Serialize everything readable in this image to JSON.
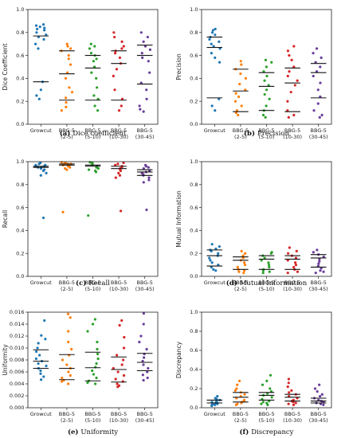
{
  "colors": {
    "Growcut": "#1f77b4",
    "BBG-5 (2-5)": "#ff7f0e",
    "BBG-5 (5-10)": "#2ca02c",
    "BBG-5 (10-30)": "#d62728",
    "BBG-5 (30-45)": "#6a3d9a"
  },
  "chart_data": [
    {
      "type": "scatter",
      "caption_letter": "(a)",
      "caption_text": "Dice coefficient",
      "ylabel": "Dice Coefficient",
      "ylim": [
        0,
        1.0
      ],
      "yticks": [
        0.0,
        0.2,
        0.4,
        0.6,
        0.8,
        1.0
      ],
      "categories": [
        "Growcut",
        "BBG-5\n(2-5)",
        "BBG-5\n(5-10)",
        "BBG-5\n(10-30)",
        "BBG-5\n(30-45)"
      ],
      "series": [
        {
          "values": [
            0.87,
            0.86,
            0.85,
            0.84,
            0.83,
            0.82,
            0.8,
            0.78,
            0.76,
            0.74,
            0.7,
            0.66,
            0.37,
            0.3,
            0.25,
            0.22
          ],
          "markers": [
            0.77,
            0.37
          ]
        },
        {
          "values": [
            0.7,
            0.68,
            0.66,
            0.64,
            0.6,
            0.57,
            0.52,
            0.45,
            0.4,
            0.32,
            0.28,
            0.23,
            0.19,
            0.15,
            0.12
          ],
          "markers": [
            0.64,
            0.44,
            0.21
          ]
        },
        {
          "values": [
            0.7,
            0.68,
            0.66,
            0.62,
            0.6,
            0.57,
            0.55,
            0.5,
            0.45,
            0.4,
            0.32,
            0.25,
            0.22,
            0.16,
            0.12
          ],
          "markers": [
            0.6,
            0.49,
            0.21
          ]
        },
        {
          "values": [
            0.8,
            0.76,
            0.72,
            0.68,
            0.66,
            0.64,
            0.62,
            0.58,
            0.53,
            0.48,
            0.42,
            0.3,
            0.22,
            0.16,
            0.12
          ],
          "markers": [
            0.64,
            0.53,
            0.21
          ]
        },
        {
          "values": [
            0.8,
            0.76,
            0.72,
            0.68,
            0.65,
            0.62,
            0.58,
            0.55,
            0.45,
            0.36,
            0.3,
            0.22,
            0.16,
            0.13,
            0.11
          ],
          "markers": [
            0.69,
            0.6,
            0.35
          ]
        }
      ]
    },
    {
      "type": "scatter",
      "caption_letter": "(b)",
      "caption_text": "Precision",
      "ylabel": "Precision",
      "ylim": [
        0,
        1.0
      ],
      "yticks": [
        0.0,
        0.2,
        0.4,
        0.6,
        0.8,
        1.0
      ],
      "categories": [
        "Growcut",
        "BBG-5\n(2-5)",
        "BBG-5\n(5-10)",
        "BBG-5\n(10-30)",
        "BBG-5\n(30-45)"
      ],
      "series": [
        {
          "values": [
            0.83,
            0.82,
            0.8,
            0.78,
            0.76,
            0.74,
            0.72,
            0.7,
            0.68,
            0.66,
            0.62,
            0.58,
            0.54,
            0.22,
            0.16,
            0.12
          ],
          "markers": [
            0.76,
            0.67,
            0.23
          ]
        },
        {
          "values": [
            0.55,
            0.52,
            0.48,
            0.44,
            0.4,
            0.35,
            0.3,
            0.27,
            0.24,
            0.2,
            0.16,
            0.12,
            0.1,
            0.08
          ],
          "markers": [
            0.48,
            0.29,
            0.11
          ]
        },
        {
          "values": [
            0.56,
            0.54,
            0.5,
            0.46,
            0.42,
            0.38,
            0.34,
            0.3,
            0.26,
            0.22,
            0.16,
            0.12,
            0.08,
            0.06
          ],
          "markers": [
            0.45,
            0.33,
            0.12
          ]
        },
        {
          "values": [
            0.68,
            0.64,
            0.6,
            0.56,
            0.5,
            0.46,
            0.42,
            0.38,
            0.34,
            0.28,
            0.2,
            0.12,
            0.08,
            0.06
          ],
          "markers": [
            0.49,
            0.36,
            0.11
          ]
        },
        {
          "values": [
            0.66,
            0.62,
            0.58,
            0.54,
            0.5,
            0.46,
            0.42,
            0.36,
            0.3,
            0.24,
            0.18,
            0.12,
            0.08,
            0.06
          ],
          "markers": [
            0.53,
            0.45,
            0.23
          ]
        }
      ]
    },
    {
      "type": "scatter",
      "caption_letter": "(c)",
      "caption_text": "Recall",
      "ylabel": "Recall",
      "ylim": [
        0,
        1.0
      ],
      "yticks": [
        0.0,
        0.2,
        0.4,
        0.6,
        0.8,
        1.0
      ],
      "categories": [
        "Growcut",
        "BBG-5\n(2-5)",
        "BBG-5\n(5-10)",
        "BBG-5\n(10-30)",
        "BBG-5\n(30-45)"
      ],
      "series": [
        {
          "values": [
            0.99,
            0.98,
            0.97,
            0.97,
            0.96,
            0.96,
            0.95,
            0.95,
            0.94,
            0.93,
            0.92,
            0.9,
            0.88,
            0.51
          ],
          "markers": [
            0.96,
            0.95
          ]
        },
        {
          "values": [
            0.995,
            0.99,
            0.985,
            0.98,
            0.98,
            0.97,
            0.97,
            0.96,
            0.95,
            0.94,
            0.93,
            0.56
          ],
          "markers": [
            0.98,
            0.97
          ]
        },
        {
          "values": [
            0.995,
            0.99,
            0.985,
            0.98,
            0.97,
            0.96,
            0.95,
            0.94,
            0.93,
            0.92,
            0.91,
            0.53
          ],
          "markers": [
            0.97,
            0.96
          ]
        },
        {
          "values": [
            0.99,
            0.98,
            0.97,
            0.96,
            0.95,
            0.94,
            0.93,
            0.92,
            0.9,
            0.88,
            0.86,
            0.57
          ],
          "markers": [
            0.96,
            0.94
          ]
        },
        {
          "values": [
            0.97,
            0.96,
            0.95,
            0.94,
            0.92,
            0.91,
            0.9,
            0.89,
            0.88,
            0.86,
            0.84,
            0.82,
            0.58
          ],
          "markers": [
            0.93,
            0.91,
            0.88
          ]
        }
      ]
    },
    {
      "type": "scatter",
      "caption_letter": "(d)",
      "caption_text": "Mutual Information",
      "ylabel": "Mutual Information",
      "ylim": [
        0,
        1.0
      ],
      "yticks": [
        0.0,
        0.2,
        0.4,
        0.6,
        0.8,
        1.0
      ],
      "categories": [
        "Growcut",
        "BBG-5\n(2-5)",
        "BBG-5\n(5-10)",
        "BBG-5\n(10-30)",
        "BBG-5\n(30-45)"
      ],
      "series": [
        {
          "values": [
            0.28,
            0.26,
            0.24,
            0.23,
            0.22,
            0.2,
            0.18,
            0.16,
            0.14,
            0.12,
            0.1,
            0.08,
            0.06,
            0.05
          ],
          "markers": [
            0.23,
            0.18,
            0.09
          ]
        },
        {
          "values": [
            0.22,
            0.2,
            0.18,
            0.16,
            0.14,
            0.12,
            0.1,
            0.08,
            0.06,
            0.05,
            0.04,
            0.03
          ],
          "markers": [
            0.17,
            0.14,
            0.06
          ]
        },
        {
          "values": [
            0.21,
            0.2,
            0.18,
            0.16,
            0.14,
            0.12,
            0.1,
            0.08,
            0.06,
            0.05,
            0.04,
            0.03
          ],
          "markers": [
            0.18,
            0.15,
            0.06
          ]
        },
        {
          "values": [
            0.25,
            0.22,
            0.2,
            0.18,
            0.16,
            0.14,
            0.12,
            0.1,
            0.08,
            0.06,
            0.04,
            0.03
          ],
          "markers": [
            0.18,
            0.15,
            0.06
          ]
        },
        {
          "values": [
            0.23,
            0.21,
            0.19,
            0.17,
            0.15,
            0.13,
            0.11,
            0.09,
            0.07,
            0.05,
            0.04,
            0.03
          ],
          "markers": [
            0.19,
            0.16,
            0.08
          ]
        }
      ]
    },
    {
      "type": "scatter",
      "caption_letter": "(e)",
      "caption_text": "Uniformity",
      "ylabel": "Uniformity",
      "ylim": [
        0,
        0.016
      ],
      "yticks": [
        0.0,
        0.002,
        0.004,
        0.006,
        0.008,
        0.01,
        0.012,
        0.014,
        0.016
      ],
      "categories": [
        "Growcut",
        "BBG-5\n(2-5)",
        "BBG-5\n(5-10)",
        "BBG-5\n(10-30)",
        "BBG-5\n(30-45)"
      ],
      "series": [
        {
          "values": [
            0.0146,
            0.0121,
            0.0115,
            0.0108,
            0.01,
            0.0094,
            0.0088,
            0.0082,
            0.0078,
            0.0074,
            0.007,
            0.0066,
            0.0062,
            0.0057,
            0.0052,
            0.0047
          ],
          "markers": [
            0.0097,
            0.0078,
            0.0066
          ]
        },
        {
          "values": [
            0.0157,
            0.0151,
            0.0128,
            0.011,
            0.0098,
            0.0088,
            0.008,
            0.0072,
            0.0066,
            0.006,
            0.0054,
            0.005,
            0.0046,
            0.0044,
            0.004
          ],
          "markers": [
            0.0089,
            0.0066,
            0.0047
          ]
        },
        {
          "values": [
            0.0148,
            0.014,
            0.0128,
            0.011,
            0.0098,
            0.009,
            0.0082,
            0.0074,
            0.0068,
            0.0062,
            0.0056,
            0.005,
            0.0045,
            0.0042,
            0.004
          ],
          "markers": [
            0.0093,
            0.0067,
            0.0045
          ]
        },
        {
          "values": [
            0.0146,
            0.0138,
            0.0118,
            0.01,
            0.0088,
            0.008,
            0.0072,
            0.0066,
            0.006,
            0.0054,
            0.0048,
            0.0044,
            0.004,
            0.0037,
            0.0035
          ],
          "markers": [
            0.0085,
            0.0064,
            0.0043
          ]
        },
        {
          "values": [
            0.0158,
            0.014,
            0.012,
            0.011,
            0.0098,
            0.009,
            0.0084,
            0.0078,
            0.0072,
            0.0066,
            0.006,
            0.0055,
            0.005,
            0.0046
          ],
          "markers": [
            0.0091,
            0.0076,
            0.0062
          ]
        }
      ]
    },
    {
      "type": "scatter",
      "caption_letter": "(f)",
      "caption_text": "Discrepancy",
      "ylabel": "Discrepancy",
      "ylim": [
        0,
        1.0
      ],
      "yticks": [
        0.0,
        0.2,
        0.4,
        0.6,
        0.8,
        1.0
      ],
      "categories": [
        "Growcut",
        "BBG-5\n(2-5)",
        "BBG-5\n(5-10)",
        "BBG-5\n(10-30)",
        "BBG-5\n(30-45)"
      ],
      "series": [
        {
          "values": [
            0.12,
            0.1,
            0.09,
            0.08,
            0.07,
            0.06,
            0.05,
            0.05,
            0.04,
            0.04,
            0.03,
            0.03,
            0.02
          ],
          "markers": [
            0.08,
            0.05
          ]
        },
        {
          "values": [
            0.28,
            0.24,
            0.2,
            0.18,
            0.16,
            0.14,
            0.12,
            0.1,
            0.08,
            0.07,
            0.06,
            0.05,
            0.04,
            0.03
          ],
          "markers": [
            0.16,
            0.11,
            0.06
          ]
        },
        {
          "values": [
            0.34,
            0.28,
            0.24,
            0.2,
            0.17,
            0.15,
            0.13,
            0.11,
            0.09,
            0.07,
            0.06,
            0.05,
            0.04,
            0.03
          ],
          "markers": [
            0.16,
            0.13,
            0.08
          ]
        },
        {
          "values": [
            0.3,
            0.26,
            0.22,
            0.18,
            0.16,
            0.14,
            0.12,
            0.1,
            0.08,
            0.07,
            0.06,
            0.05,
            0.04,
            0.03
          ],
          "markers": [
            0.14,
            0.11,
            0.07
          ]
        },
        {
          "values": [
            0.24,
            0.2,
            0.17,
            0.14,
            0.12,
            0.1,
            0.08,
            0.07,
            0.06,
            0.05,
            0.04,
            0.03
          ],
          "markers": [
            0.1,
            0.07,
            0.05
          ]
        }
      ]
    }
  ]
}
